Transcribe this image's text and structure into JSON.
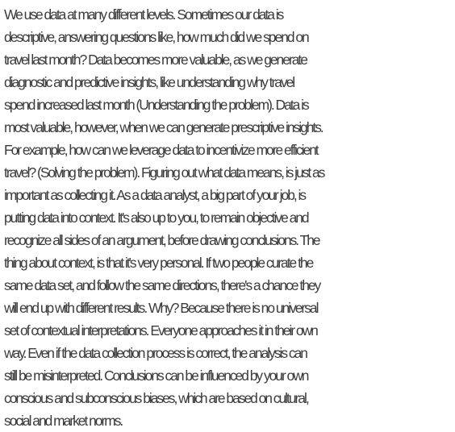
{
  "document": {
    "lines": [
      "We use data at many different levels. Sometimes our data is",
      "descriptive, answering questions like, how much did we spend on",
      "travel last month? Data becomes more valuable, as we generate",
      "diagnostic and predictive insights, like understanding why travel",
      "spend increased last month (Understanding the problem). Data is",
      "most valuable, however, when we can generate prescriptive insights.",
      "For example, how can we leverage data to incentivize more efficient",
      "travel? (Solving the problem). Figuring out what data means, is just as",
      "important as collecting it. As a data analyst, a big part of your job, is",
      "putting data into context. It's also up to you, to remain objective and",
      "recognize all sides of an argument, before drawing conclusions. The",
      "thing about context, is that it's very personal. If two people curate the",
      "same data set, and follow the same directions, there's a chance they",
      "will end up with different results. Why? Because there is no universal",
      "set of contextual interpretations. Everyone approaches it in their own",
      "way. Even if the data collection process is correct, the analysis can",
      "still be misinterpreted. Conclusions can be influenced by your own",
      "conscious and subconscious biases, which are based on cultural,",
      "social and market norms."
    ]
  }
}
